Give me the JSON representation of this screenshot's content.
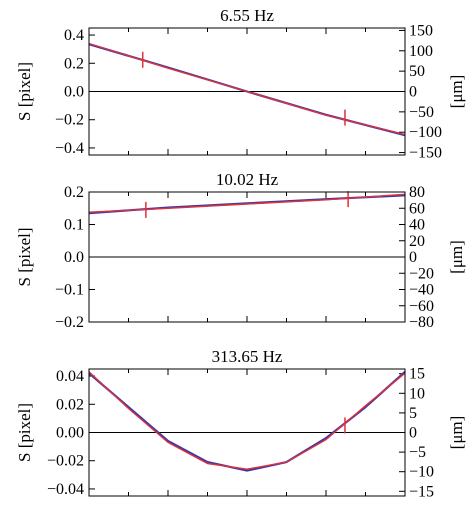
{
  "chart_data": [
    {
      "type": "line",
      "title": "6.55 Hz",
      "ylabel": "S [pixel]",
      "ylabel_right": "[μm]",
      "xlim": [
        0,
        1
      ],
      "ylim": [
        -0.45,
        0.45
      ],
      "yticks": [
        "0.4",
        "0.2",
        "0.0",
        "−0.2",
        "−0.4"
      ],
      "yticks_right": [
        "150",
        "100",
        "50",
        "0",
        "−50",
        "−100",
        "−150"
      ],
      "y2lim": [
        -156,
        156
      ],
      "series": [
        {
          "color": "#3a3aa8",
          "x": [
            0,
            0.25,
            0.5,
            0.75,
            1
          ],
          "y": [
            0.335,
            0.17,
            0.0,
            -0.165,
            -0.31
          ]
        },
        {
          "color": "#e0303a",
          "x": [
            0,
            0.25,
            0.5,
            0.75,
            1
          ],
          "y": [
            0.34,
            0.165,
            0.0,
            -0.168,
            -0.305
          ]
        }
      ],
      "markers": [
        {
          "x": 0.17,
          "y": 0.225
        },
        {
          "x": 0.81,
          "y": -0.185
        }
      ]
    },
    {
      "type": "line",
      "title": "10.02 Hz",
      "ylabel": "S [pixel]",
      "ylabel_right": "[μm]",
      "xlim": [
        0,
        1
      ],
      "ylim": [
        -0.2,
        0.2
      ],
      "yticks": [
        "0.2",
        "0.1",
        "0.0",
        "−0.1",
        "−0.2"
      ],
      "yticks_right": [
        "80",
        "60",
        "40",
        "20",
        "0",
        "−20",
        "−40",
        "−60",
        "−80"
      ],
      "y2lim": [
        -80,
        80
      ],
      "series": [
        {
          "color": "#3a3aa8",
          "x": [
            0,
            0.25,
            0.5,
            0.75,
            1
          ],
          "y": [
            0.135,
            0.152,
            0.165,
            0.178,
            0.19
          ]
        },
        {
          "color": "#e0303a",
          "x": [
            0,
            0.25,
            0.5,
            0.75,
            1
          ],
          "y": [
            0.138,
            0.15,
            0.163,
            0.176,
            0.193
          ]
        }
      ],
      "markers": [
        {
          "x": 0.18,
          "y": 0.145
        },
        {
          "x": 0.82,
          "y": 0.178
        }
      ]
    },
    {
      "type": "line",
      "title": "313.65 Hz",
      "ylabel": "S [pixel]",
      "ylabel_right": "[μm]",
      "xlim": [
        0,
        1
      ],
      "ylim": [
        -0.045,
        0.045
      ],
      "yticks": [
        "0.04",
        "0.02",
        "0.00",
        "−0.02",
        "−0.04"
      ],
      "yticks_right": [
        "15",
        "10",
        "5",
        "0",
        "−5",
        "−10",
        "−15"
      ],
      "y2lim": [
        -16.2,
        16.2
      ],
      "series": [
        {
          "color": "#3a3aa8",
          "x": [
            0,
            0.125,
            0.25,
            0.375,
            0.5,
            0.625,
            0.75,
            0.875,
            1
          ],
          "y": [
            0.042,
            0.018,
            -0.006,
            -0.021,
            -0.027,
            -0.021,
            -0.004,
            0.018,
            0.043
          ]
        },
        {
          "color": "#e0303a",
          "x": [
            0,
            0.125,
            0.25,
            0.375,
            0.5,
            0.625,
            0.75,
            0.875,
            1
          ],
          "y": [
            0.043,
            0.017,
            -0.007,
            -0.022,
            -0.026,
            -0.021,
            -0.005,
            0.019,
            0.042
          ]
        }
      ],
      "markers": [
        {
          "x": 0.81,
          "y": 0.005
        }
      ]
    }
  ]
}
